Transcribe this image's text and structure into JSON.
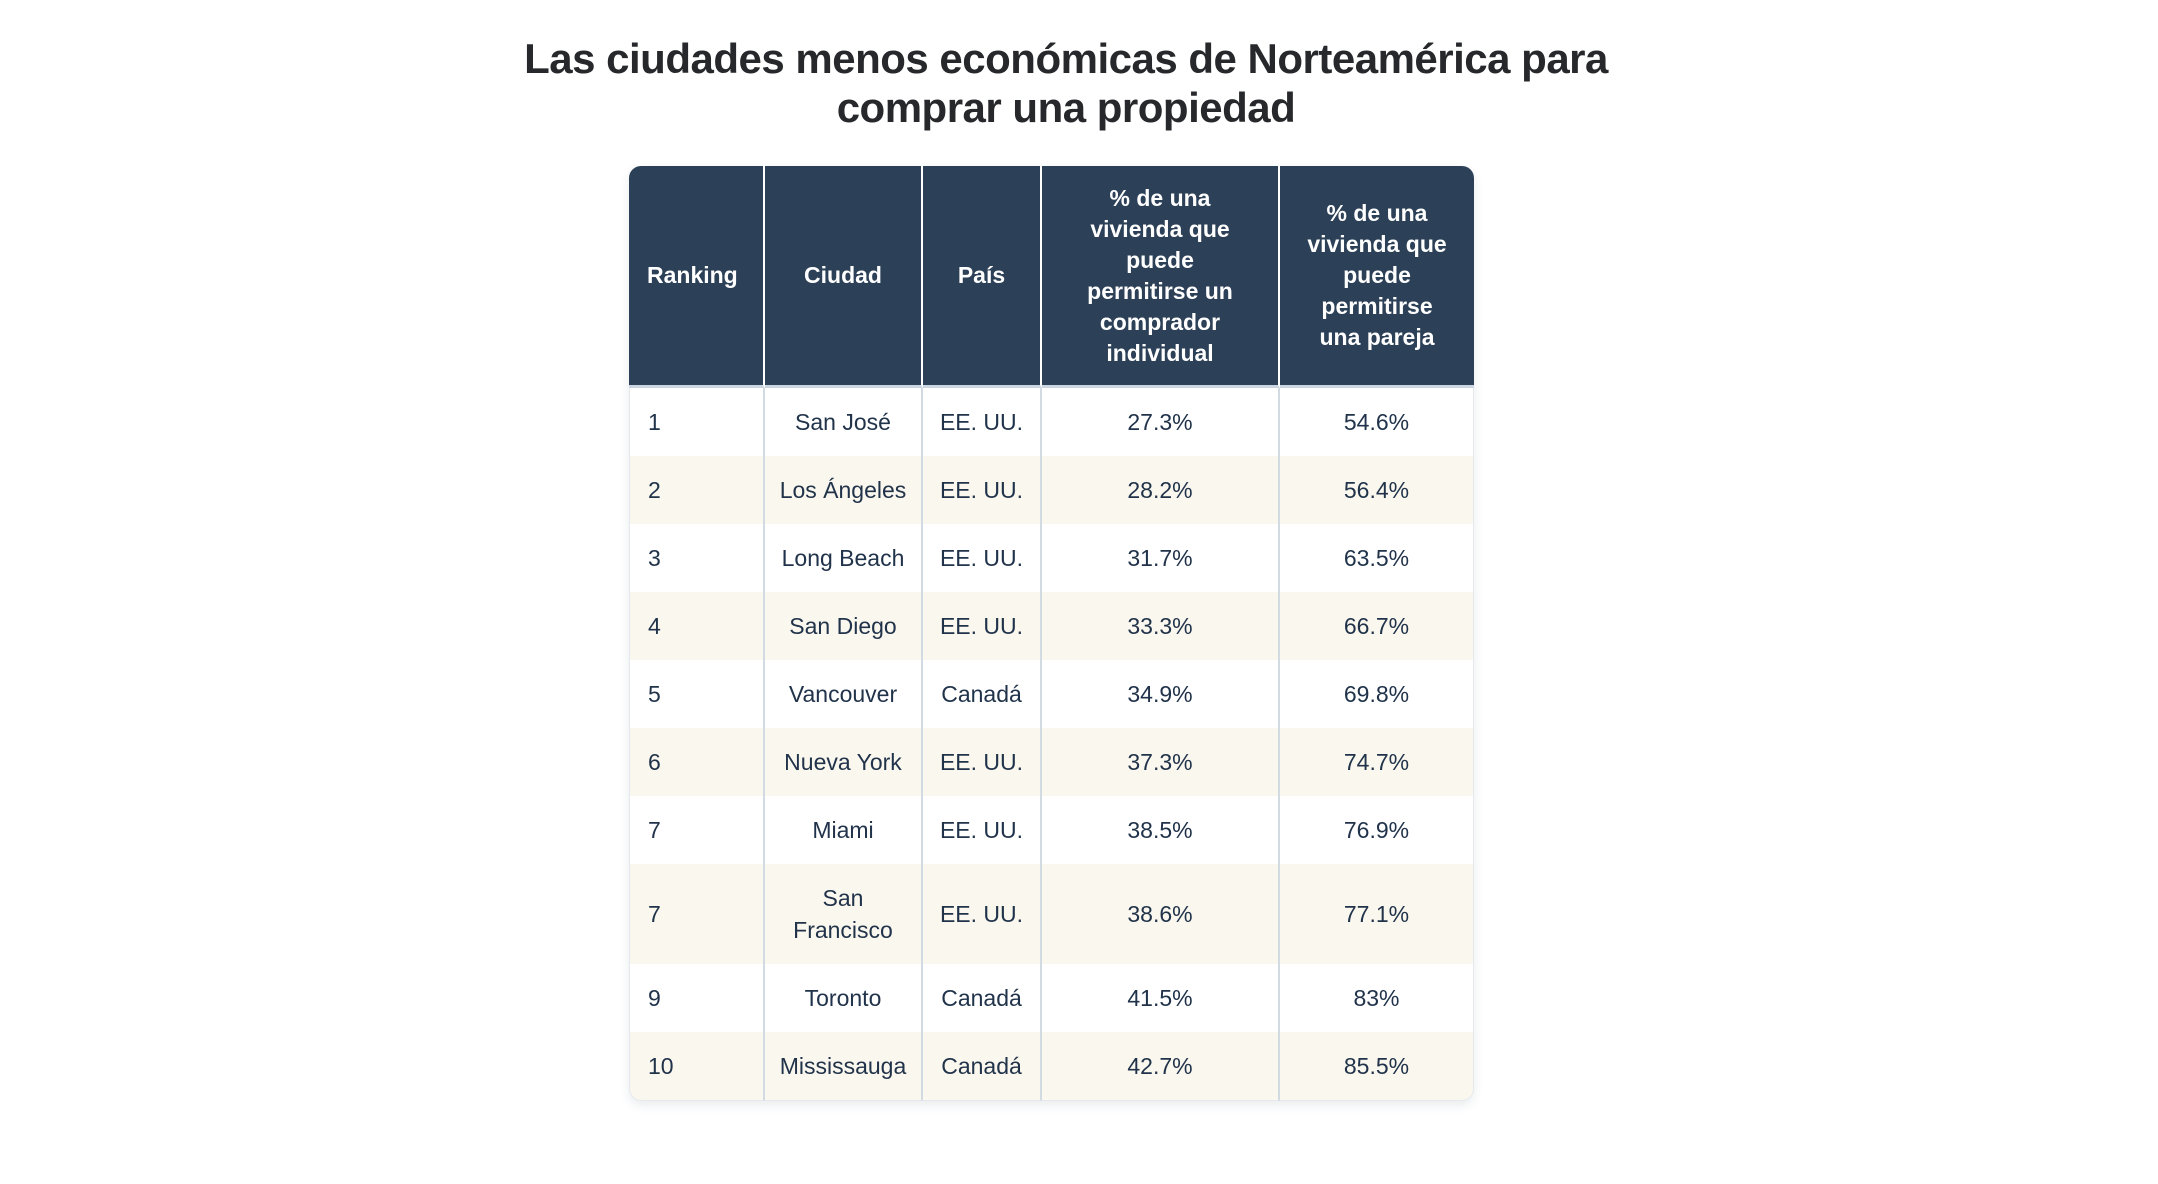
{
  "title": "Las ciudades menos económicas de Norteamérica para\ncomprar una propiedad",
  "table": {
    "headers": {
      "ranking": "Ranking",
      "ciudad": "Ciudad",
      "pais": "País",
      "individual": "% de una\nvivienda que\npuede\npermitirse un\ncomprador\nindividual",
      "pareja": "% de una\nvivienda que\npuede\npermitirse\nuna pareja"
    },
    "rows": [
      {
        "ranking": "1",
        "ciudad": "San José",
        "pais": "EE. UU.",
        "individual": "27.3%",
        "pareja": "54.6%"
      },
      {
        "ranking": "2",
        "ciudad": "Los Ángeles",
        "pais": "EE. UU.",
        "individual": "28.2%",
        "pareja": "56.4%"
      },
      {
        "ranking": "3",
        "ciudad": "Long Beach",
        "pais": "EE. UU.",
        "individual": "31.7%",
        "pareja": "63.5%"
      },
      {
        "ranking": "4",
        "ciudad": "San Diego",
        "pais": "EE. UU.",
        "individual": "33.3%",
        "pareja": "66.7%"
      },
      {
        "ranking": "5",
        "ciudad": "Vancouver",
        "pais": "Canadá",
        "individual": "34.9%",
        "pareja": "69.8%"
      },
      {
        "ranking": "6",
        "ciudad": "Nueva York",
        "pais": "EE. UU.",
        "individual": "37.3%",
        "pareja": "74.7%"
      },
      {
        "ranking": "7",
        "ciudad": "Miami",
        "pais": "EE. UU.",
        "individual": "38.5%",
        "pareja": "76.9%"
      },
      {
        "ranking": "7",
        "ciudad": "San Francisco",
        "pais": "EE. UU.",
        "individual": "38.6%",
        "pareja": "77.1%"
      },
      {
        "ranking": "9",
        "ciudad": "Toronto",
        "pais": "Canadá",
        "individual": "41.5%",
        "pareja": "83%"
      },
      {
        "ranking": "10",
        "ciudad": "Mississauga",
        "pais": "Canadá",
        "individual": "42.7%",
        "pareja": "85.5%"
      }
    ]
  },
  "colors": {
    "header_bg": "#2c4057",
    "header_text": "#ffffff",
    "row_bg": "#ffffff",
    "row_alt_bg": "#faf7ee",
    "body_text": "#21334a",
    "title_text": "#26282b",
    "column_divider": "#d2dae2",
    "header_divider": "#ffffff",
    "header_underline": "#ccd6e2"
  },
  "chart_data": {
    "type": "table",
    "title": "Las ciudades menos económicas de Norteamérica para comprar una propiedad",
    "columns": [
      "Ranking",
      "Ciudad",
      "País",
      "% de una vivienda que puede permitirse un comprador individual",
      "% de una vivienda que puede permitirse una pareja"
    ],
    "units": "percent",
    "rows": [
      [
        1,
        "San José",
        "EE. UU.",
        27.3,
        54.6
      ],
      [
        2,
        "Los Ángeles",
        "EE. UU.",
        28.2,
        56.4
      ],
      [
        3,
        "Long Beach",
        "EE. UU.",
        31.7,
        63.5
      ],
      [
        4,
        "San Diego",
        "EE. UU.",
        33.3,
        66.7
      ],
      [
        5,
        "Vancouver",
        "Canadá",
        34.9,
        69.8
      ],
      [
        6,
        "Nueva York",
        "EE. UU.",
        37.3,
        74.7
      ],
      [
        7,
        "Miami",
        "EE. UU.",
        38.5,
        76.9
      ],
      [
        7,
        "San Francisco",
        "EE. UU.",
        38.6,
        77.1
      ],
      [
        9,
        "Toronto",
        "Canadá",
        41.5,
        83.0
      ],
      [
        10,
        "Mississauga",
        "Canadá",
        42.7,
        85.5
      ]
    ]
  }
}
